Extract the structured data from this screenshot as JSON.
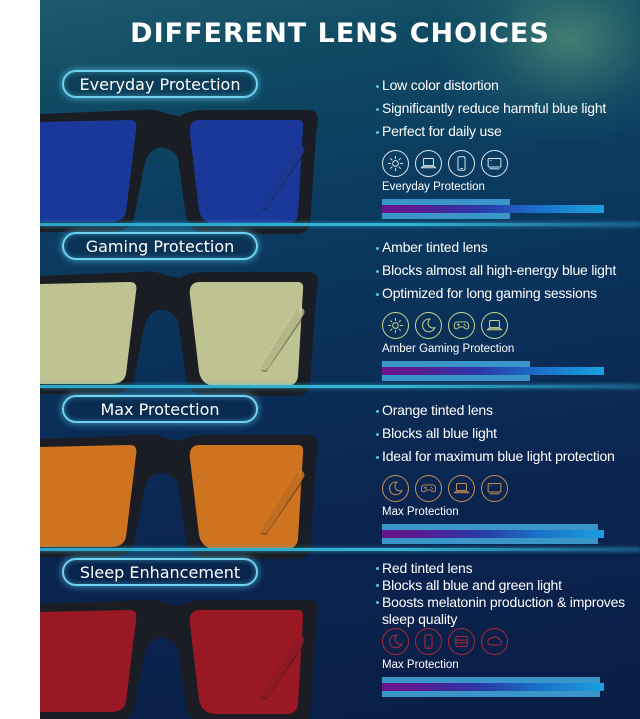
{
  "title": "DIFFERENT LENS CHOICES",
  "colors": {
    "background_top": "#1e5a6e",
    "background_bottom": "#0a1e45",
    "divider": "#33b6d6",
    "pill_border": "#6fd2ee",
    "bar_light": "#3a96c8",
    "bar_core_start": "#6a1488",
    "bar_core_end": "#1aa0e0"
  },
  "sections": [
    {
      "name": "Everyday Protection",
      "lens_color": "#1a3aa0",
      "bullets": [
        "Low color distortion",
        "Significantly reduce harmful blue light",
        "Perfect for daily use"
      ],
      "icons": [
        "sun-icon",
        "laptop-icon",
        "phone-icon",
        "monitor-icon"
      ],
      "icon_color": "#d8e8f0",
      "rating_label": "Everyday Protection",
      "outer_bar_width": 128
    },
    {
      "name": "Gaming Protection",
      "lens_color": "#c8cc98",
      "bullets": [
        "Amber tinted lens",
        "Blocks almost all high-energy blue light",
        "Optimized for long gaming sessions"
      ],
      "icons": [
        "sun-icon",
        "moon-icon",
        "gamepad-icon",
        "laptop-icon"
      ],
      "icon_color": "#c8d890",
      "rating_label": "Amber Gaming Protection",
      "outer_bar_width": 148
    },
    {
      "name": "Max Protection",
      "lens_color": "#d87820",
      "bullets": [
        "Orange tinted lens",
        "Blocks all blue light",
        "Ideal for maximum blue light protection"
      ],
      "icons": [
        "moon-icon",
        "gamepad-icon",
        "laptop-icon",
        "monitor-icon"
      ],
      "icon_color": "#c89050",
      "rating_label": "Max Protection",
      "outer_bar_width": 216
    },
    {
      "name": "Sleep Enhancement",
      "lens_color": "#a01824",
      "bullets": [
        "Red tinted lens",
        "Blocks all blue and green light",
        "Boosts melatonin production & improves sleep quality"
      ],
      "icons": [
        "moon-icon",
        "phone-icon",
        "bed-icon",
        "cloud-icon"
      ],
      "icon_color": "#b02838",
      "rating_label": "Max Protection",
      "outer_bar_width": 218
    }
  ]
}
